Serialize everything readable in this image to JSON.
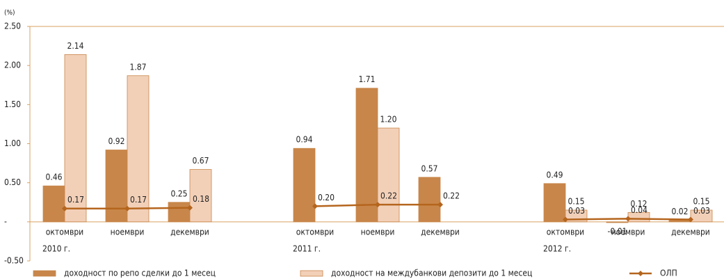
{
  "chart_data": {
    "type": "bar-line",
    "y_unit": "(%)",
    "categories": [
      "октомври",
      "ноември",
      "декември",
      null,
      "октомври",
      "ноември",
      "декември",
      null,
      "октомври",
      "ноември",
      "декември"
    ],
    "year_labels": [
      "2010 г.",
      "2011 г.",
      "2012 г."
    ],
    "series": [
      {
        "name": "доходност по репо сделки до 1 месец",
        "kind": "bar",
        "color": "#c8864a",
        "values": [
          0.46,
          0.92,
          0.25,
          null,
          0.94,
          1.71,
          0.57,
          null,
          0.49,
          -0.01,
          0.02
        ],
        "value_labels": [
          "0.46",
          "0.92",
          "0.25",
          null,
          "0.94",
          "1.71",
          "0.57",
          null,
          "0.49",
          "-0.01",
          "0.02"
        ]
      },
      {
        "name": "доходност на междубанкови депозити до 1 месец",
        "kind": "bar",
        "color": "#f2d0b8",
        "values": [
          2.14,
          1.87,
          0.67,
          null,
          null,
          1.2,
          null,
          null,
          0.15,
          0.12,
          0.15
        ],
        "value_labels": [
          "2.14",
          "1.87",
          "0.67",
          null,
          null,
          "1.20",
          null,
          null,
          "0.15",
          "0.12",
          "0.15"
        ]
      },
      {
        "name": "ОЛП",
        "kind": "line",
        "color": "#b5651d",
        "values": [
          0.17,
          0.17,
          0.18,
          null,
          0.2,
          0.22,
          0.22,
          null,
          0.03,
          0.04,
          0.03
        ],
        "value_labels": [
          "0.17",
          "0.17",
          "0.18",
          null,
          "0.20",
          "0.22",
          "0.22",
          null,
          "0.03",
          "0.04",
          "0.03"
        ]
      }
    ],
    "ylim": [
      -0.5,
      2.5
    ],
    "yticks": [
      {
        "value": -0.5,
        "label": "-0.50"
      },
      {
        "value": 0,
        "label": "-"
      },
      {
        "value": 0.5,
        "label": "0.50"
      },
      {
        "value": 1,
        "label": "1.00"
      },
      {
        "value": 1.5,
        "label": "1.50"
      },
      {
        "value": 2,
        "label": "2.00"
      },
      {
        "value": 2.5,
        "label": "2.50"
      }
    ],
    "grid": false,
    "legend": "bottom"
  }
}
